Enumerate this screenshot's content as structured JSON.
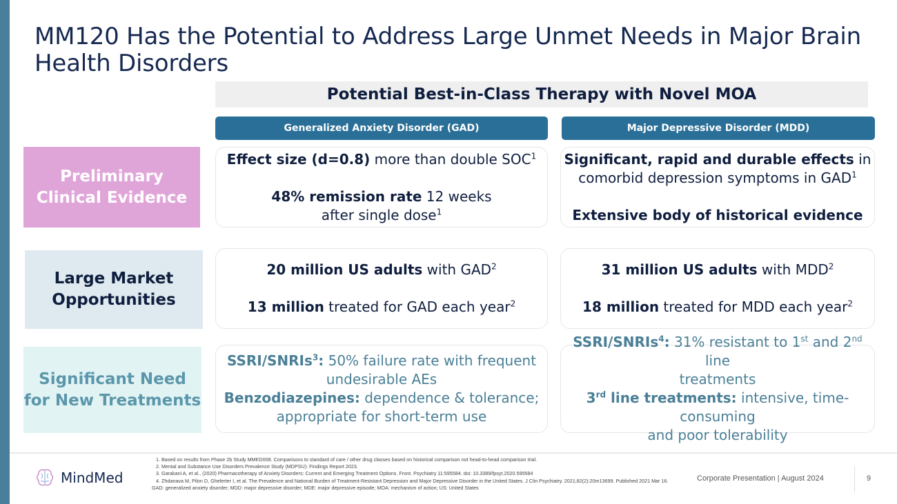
{
  "title": "MM120 Has the Potential to Address Large Unmet Needs in Major Brain Health Disorders",
  "subtitle": "Potential Best-in-Class Therapy with Novel MOA",
  "columns": {
    "gad": "Generalized Anxiety Disorder (GAD)",
    "mdd": "Major Depressive Disorder (MDD)"
  },
  "rows": {
    "evidence": {
      "label_line1": "Preliminary",
      "label_line2": "Clinical Evidence",
      "gad": {
        "a_bold": "Effect size (d=0.8)",
        "a_rest": " more than double SOC",
        "a_sup": "1",
        "b_bold": "48% remission rate",
        "b_rest": " 12 weeks",
        "b_line2": "after single dose",
        "b_sup": "1"
      },
      "mdd": {
        "a_bold": "Significant, rapid and durable effects",
        "a_rest": " in",
        "a_line2": "comorbid depression symptoms in GAD",
        "a_sup": "1",
        "b_bold": "Extensive body of historical evidence"
      }
    },
    "market": {
      "label_line1": "Large Market",
      "label_line2": "Opportunities",
      "gad": {
        "a_bold": "20 million US adults",
        "a_rest": " with GAD",
        "a_sup": "2",
        "b_bold": "13 million",
        "b_rest": " treated for GAD each year",
        "b_sup": "2"
      },
      "mdd": {
        "a_bold": "31 million US adults",
        "a_rest": " with MDD",
        "a_sup": "2",
        "b_bold": "18 million",
        "b_rest": " treated for MDD each year",
        "b_sup": "2"
      }
    },
    "need": {
      "label_line1": "Significant Need",
      "label_line2": "for New Treatments",
      "gad": {
        "a_bold": "SSRI/SNRIs",
        "a_sup": "3",
        "a_colon": ":",
        "a_rest": " 50% failure rate with frequent",
        "a_line2": "undesirable AEs",
        "b_bold": "Benzodiazepines:",
        "b_rest": " dependence & tolerance;",
        "b_line2": "appropriate for short-term use"
      },
      "mdd": {
        "a_bold": "SSRI/SNRIs",
        "a_sup": "4",
        "a_colon": ":",
        "a_rest1": " 31% resistant to 1",
        "a_sup_st": "st",
        "a_rest2": " and 2",
        "a_sup_nd": "nd",
        "a_rest3": " line",
        "a_line2": "treatments",
        "b_num": "3",
        "b_sup_rd": "rd",
        "b_bold": " line treatments:",
        "b_rest": " intensive, time-consuming",
        "b_line2": "and poor tolerability"
      }
    }
  },
  "footnotes": [
    "Based on results from Phase 2b Study MMED008. Comparisons to standard of care  / other drug classes based on historical comparison not head-to-head comparison trial.",
    "Mental and Substance Use Disorders Prevalence Study (MDPSU): Findings Report 2023.",
    "Garakani A, et al., (2020) Pharmacotherapy of Anxiety Disorders: Current and Emerging Treatment Options. Front. Psychiatry 11:595584. doi: 10.3389/fpsyt.2020.595584",
    "Zhdanava M, Pilon D, Ghelerter I, et al. The Prevalence and National Burden of Treatment-Resistant Depression and Major Depressive Disorder in the United States. J Clin Psychiatry. 2021;82(2):20m13699. Published 2021 Mar 16."
  ],
  "abbreviations": "GAD: generalized anxiety disorder; MDD: major depressive disorder; MDE: major depressive episode; MOA: mechanism of action; US: United States",
  "logo_text": "MindMed",
  "corporate": "Corporate Presentation | August 2024",
  "page_number": "9",
  "colors": {
    "accent": "#2a6f97",
    "navy": "#152850",
    "pink": "#e0a5d8",
    "teal_text": "#4a7f96"
  }
}
